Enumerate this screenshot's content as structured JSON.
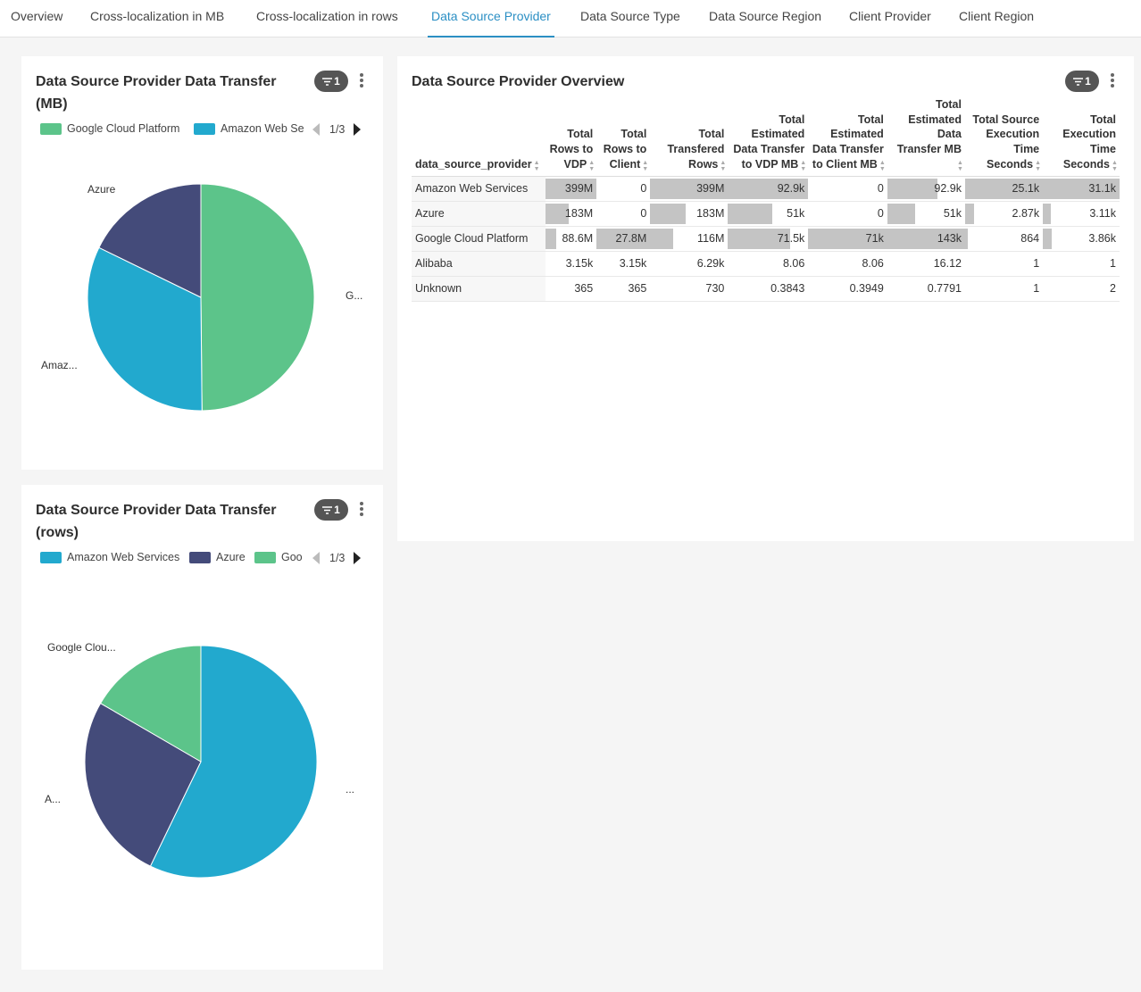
{
  "tabs": [
    {
      "label": "Overview",
      "active": false
    },
    {
      "label": "Cross-localization in MB",
      "active": false
    },
    {
      "label": "Cross-localization in rows",
      "active": false
    },
    {
      "label": "Data Source Provider",
      "active": true
    },
    {
      "label": "Data Source Type",
      "active": false
    },
    {
      "label": "Data Source Region",
      "active": false
    },
    {
      "label": "Client Provider",
      "active": false
    },
    {
      "label": "Client Region",
      "active": false
    }
  ],
  "colors": {
    "google": "#5cc48a",
    "amazon": "#22a9ce",
    "azure": "#444b7a",
    "accent": "#2b8fc4",
    "bar": "#c4c4c4"
  },
  "filter_badge": "1",
  "mb_chart": {
    "title_line1": "Data Source Provider Data Transfer",
    "title_line2": "(MB)",
    "legend": [
      "Google Cloud Platform",
      "Amazon Web Se"
    ],
    "pager": "1/3",
    "labels": {
      "google": "G...",
      "amazon": "Amaz...",
      "azure": "Azure"
    }
  },
  "rows_chart": {
    "title_line1": "Data Source Provider Data Transfer",
    "title_line2": "(rows)",
    "legend": [
      "Amazon Web Services",
      "Azure",
      "Goo"
    ],
    "pager": "1/3",
    "labels": {
      "google": "Google Clou...",
      "amazon": "...",
      "azure": "A..."
    }
  },
  "chart_data": [
    {
      "type": "pie",
      "title": "Data Source Provider Data Transfer (MB)",
      "series": [
        {
          "name": "Google Cloud Platform",
          "value": 143000
        },
        {
          "name": "Amazon Web Services",
          "value": 92900
        },
        {
          "name": "Azure",
          "value": 51000
        }
      ]
    },
    {
      "type": "pie",
      "title": "Data Source Provider Data Transfer (rows)",
      "series": [
        {
          "name": "Amazon Web Services",
          "value": 399000000
        },
        {
          "name": "Azure",
          "value": 183000000
        },
        {
          "name": "Google Cloud Platform",
          "value": 116000000
        }
      ]
    }
  ],
  "overview": {
    "title": "Data Source Provider Overview",
    "columns": [
      "data_source_provider",
      "Total Rows to VDP",
      "Total Rows to Client",
      "Total Transfered Rows",
      "Total Estimated Data Transfer to VDP MB",
      "Total Estimated Data Transfer to Client MB",
      "Total Estimated Data Transfer MB",
      "Total Source Execution Time Seconds",
      "Total Execution Time Seconds"
    ],
    "rows": [
      {
        "name": "Amazon Web Services",
        "cells": [
          "399M",
          "0",
          "399M",
          "92.9k",
          "0",
          "92.9k",
          "25.1k",
          "31.1k"
        ],
        "fills": [
          1,
          0,
          1,
          1,
          0,
          0.65,
          1,
          1
        ]
      },
      {
        "name": "Azure",
        "cells": [
          "183M",
          "0",
          "183M",
          "51k",
          "0",
          "51k",
          "2.87k",
          "3.11k"
        ],
        "fills": [
          0.46,
          0,
          0.46,
          0.55,
          0,
          0.36,
          0.11,
          0.1
        ]
      },
      {
        "name": "Google Cloud Platform",
        "cells": [
          "88.6M",
          "27.8M",
          "116M",
          "71.5k",
          "71k",
          "143k",
          "864",
          "3.86k"
        ],
        "fills": [
          0.22,
          1,
          0.29,
          0.77,
          1,
          1,
          0.03,
          0.12
        ]
      },
      {
        "name": "Alibaba",
        "cells": [
          "3.15k",
          "3.15k",
          "6.29k",
          "8.06",
          "8.06",
          "16.12",
          "1",
          "1"
        ],
        "fills": [
          0,
          0,
          0,
          0,
          0,
          0,
          0,
          0
        ]
      },
      {
        "name": "Unknown",
        "cells": [
          "365",
          "365",
          "730",
          "0.3843",
          "0.3949",
          "0.7791",
          "1",
          "2"
        ],
        "fills": [
          0,
          0,
          0,
          0,
          0,
          0,
          0,
          0
        ]
      }
    ]
  }
}
